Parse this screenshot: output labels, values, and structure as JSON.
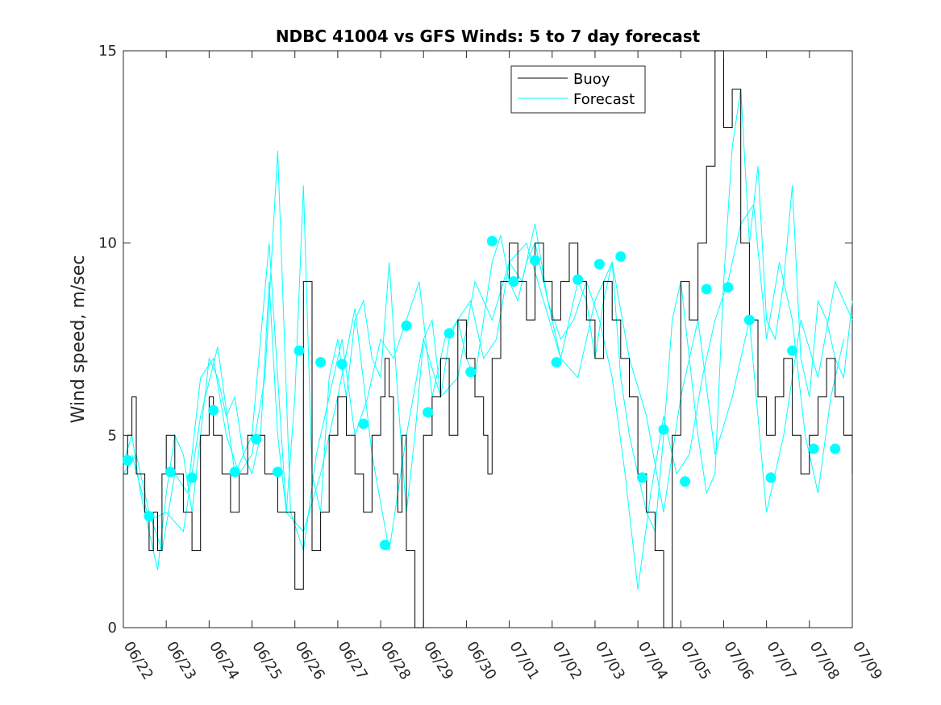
{
  "chart_data": {
    "type": "line",
    "title": "NDBC 41004 vs GFS Winds: 5 to 7 day forecast",
    "xlabel": "",
    "ylabel": "Wind speed, m/sec",
    "xlim": [
      "06/22",
      "07/09"
    ],
    "ylim": [
      0,
      15
    ],
    "yticks": [
      0,
      5,
      10,
      15
    ],
    "xtick_labels": [
      "06/22",
      "06/23",
      "06/24",
      "06/25",
      "06/26",
      "06/27",
      "06/28",
      "06/29",
      "06/30",
      "07/01",
      "07/02",
      "07/03",
      "07/04",
      "07/05",
      "07/06",
      "07/07",
      "07/08",
      "07/09"
    ],
    "grid": false,
    "legend": {
      "placement": "top-center",
      "entries": [
        "Buoy",
        "Forecast"
      ]
    },
    "colors": {
      "buoy": "#000000",
      "forecast": "#00ffff"
    },
    "series": [
      {
        "name": "Buoy",
        "x": [
          0.0,
          0.1,
          0.2,
          0.3,
          0.4,
          0.5,
          0.6,
          0.7,
          0.8,
          0.9,
          1.0,
          1.2,
          1.4,
          1.6,
          1.8,
          2.0,
          2.1,
          2.3,
          2.5,
          2.7,
          2.9,
          3.0,
          3.3,
          3.6,
          4.0,
          4.2,
          4.4,
          4.6,
          4.8,
          5.0,
          5.2,
          5.4,
          5.6,
          5.8,
          6.0,
          6.1,
          6.2,
          6.3,
          6.4,
          6.5,
          6.6,
          6.8,
          7.0,
          7.2,
          7.4,
          7.6,
          7.8,
          8.0,
          8.2,
          8.4,
          8.5,
          8.6,
          8.8,
          9.0,
          9.2,
          9.4,
          9.6,
          9.8,
          10.0,
          10.2,
          10.4,
          10.6,
          10.8,
          11.0,
          11.2,
          11.4,
          11.6,
          11.8,
          12.0,
          12.2,
          12.4,
          12.6,
          12.8,
          13.0,
          13.2,
          13.4,
          13.6,
          13.8,
          14.0,
          14.2,
          14.4,
          14.6,
          14.8,
          15.0,
          15.2,
          15.4,
          15.6,
          15.8,
          16.0,
          16.2,
          16.4,
          16.6,
          16.8,
          17.0
        ],
        "y": [
          4,
          5,
          6,
          4,
          4,
          3,
          2,
          3,
          2,
          4,
          5,
          4,
          3,
          2,
          5,
          6,
          5,
          4,
          3,
          4,
          5,
          5,
          4,
          3,
          1,
          9,
          2,
          3,
          5,
          6,
          5,
          4,
          3,
          5,
          6,
          7,
          6,
          4,
          3,
          5,
          2,
          0,
          5,
          6,
          7,
          5,
          8,
          7,
          6,
          5,
          4,
          7,
          9,
          10,
          9,
          8,
          10,
          9,
          8,
          9,
          10,
          9,
          8,
          7,
          9,
          8,
          7,
          6,
          4,
          3,
          2,
          0,
          5,
          9,
          8,
          10,
          12,
          15,
          13,
          14,
          10,
          8,
          6,
          5,
          6,
          7,
          5,
          4,
          5,
          6,
          7,
          6,
          5,
          4
        ]
      },
      {
        "name": "Forecast",
        "x": [
          0.0,
          0.2,
          0.4,
          0.6,
          0.8,
          1.0,
          1.2,
          1.4,
          1.6,
          1.8,
          2.0,
          2.2,
          2.4,
          2.6,
          2.8,
          3.0,
          3.2,
          3.4,
          3.6,
          3.8,
          4.0,
          4.2,
          4.4,
          4.6,
          4.8,
          5.0,
          5.2,
          5.4,
          5.6,
          5.8,
          6.0,
          6.2,
          6.4,
          6.6,
          6.8,
          7.0,
          7.2,
          7.4,
          7.6,
          7.8,
          8.0,
          8.2,
          8.4,
          8.6,
          8.8,
          9.0,
          9.2,
          9.4,
          9.6,
          9.8,
          10.0,
          10.2,
          10.4,
          10.6,
          10.8,
          11.0,
          11.2,
          11.4,
          11.6,
          11.8,
          12.0,
          12.2,
          12.4,
          12.6,
          12.8,
          13.0,
          13.2,
          13.4,
          13.6,
          13.8,
          14.0,
          14.2,
          14.4,
          14.6,
          14.8,
          15.0,
          15.2,
          15.4,
          15.6,
          15.8,
          16.0,
          16.2,
          16.4,
          16.6,
          16.8,
          17.0
        ],
        "y": [
          4.3,
          5.0,
          3.5,
          2.5,
          1.5,
          3.5,
          5.0,
          4.5,
          3.0,
          5.0,
          7.0,
          6.5,
          5.5,
          6.0,
          4.5,
          4.0,
          5.0,
          9.0,
          5.0,
          3.0,
          6.0,
          11.5,
          4.0,
          3.0,
          6.5,
          7.5,
          6.0,
          8.0,
          8.5,
          7.0,
          6.5,
          9.5,
          6.0,
          3.0,
          5.0,
          7.5,
          8.0,
          6.0,
          7.5,
          8.0,
          7.0,
          6.5,
          8.0,
          9.5,
          10.2,
          9.0,
          8.5,
          9.5,
          10.0,
          9.0,
          8.0,
          7.0,
          8.0,
          9.0,
          8.5,
          7.0,
          8.5,
          9.5,
          6.5,
          5.0,
          4.0,
          3.0,
          2.5,
          5.0,
          8.0,
          9.0,
          7.0,
          5.0,
          3.5,
          4.0,
          9.0,
          12.5,
          14.0,
          10.0,
          12.0,
          8.0,
          7.5,
          9.0,
          11.5,
          7.0,
          6.0,
          8.5,
          8.0,
          7.0,
          6.5,
          8.5
        ]
      },
      {
        "name": "",
        "x": [
          0.0,
          0.3,
          0.6,
          0.9,
          1.2,
          1.5,
          1.8,
          2.1,
          2.4,
          2.7,
          3.0,
          3.3,
          3.6,
          3.9,
          4.2,
          4.5,
          4.8,
          5.1,
          5.4,
          5.7,
          6.0,
          6.3,
          6.6,
          6.9,
          7.2,
          7.5,
          7.8,
          8.1,
          8.4,
          8.7,
          9.0,
          9.3,
          9.6,
          9.9,
          10.2,
          10.5,
          10.8,
          11.1,
          11.4,
          11.7,
          12.0,
          12.3,
          12.6,
          12.9,
          13.2,
          13.5,
          13.8,
          14.1,
          14.4,
          14.7,
          15.0,
          15.3,
          15.6,
          15.9,
          16.2,
          16.5,
          16.8
        ],
        "y": [
          4.0,
          4.5,
          3.0,
          2.0,
          4.0,
          3.5,
          6.5,
          7.0,
          5.0,
          4.0,
          4.5,
          6.5,
          12.4,
          3.0,
          2.0,
          4.5,
          6.0,
          7.5,
          5.0,
          6.0,
          7.5,
          7.0,
          8.0,
          9.0,
          6.0,
          7.5,
          8.0,
          8.5,
          7.0,
          7.5,
          9.5,
          9.0,
          10.5,
          8.5,
          7.5,
          8.0,
          9.0,
          8.0,
          6.5,
          4.0,
          1.0,
          3.5,
          5.5,
          4.0,
          4.5,
          6.5,
          8.0,
          9.0,
          10.5,
          11.0,
          7.5,
          9.5,
          8.0,
          5.0,
          3.5,
          6.0,
          7.5
        ]
      },
      {
        "name": "",
        "x": [
          0.2,
          0.6,
          1.0,
          1.4,
          1.8,
          2.2,
          2.6,
          3.0,
          3.4,
          3.8,
          4.2,
          4.6,
          5.0,
          5.4,
          5.8,
          6.2,
          6.6,
          7.0,
          7.4,
          7.8,
          8.2,
          8.6,
          9.0,
          9.4,
          9.8,
          10.2,
          10.6,
          11.0,
          11.4,
          11.8,
          12.2,
          12.6,
          13.0,
          13.4,
          13.8,
          14.2,
          14.6,
          15.0,
          15.4,
          15.8,
          16.2,
          16.6,
          17.0
        ],
        "y": [
          4.5,
          2.8,
          3.0,
          2.5,
          5.5,
          7.3,
          4.0,
          5.0,
          10.0,
          3.0,
          2.5,
          4.0,
          6.0,
          8.3,
          4.5,
          2.0,
          5.0,
          7.5,
          6.0,
          6.5,
          9.0,
          8.0,
          9.5,
          10.0,
          8.5,
          7.0,
          6.5,
          8.5,
          9.5,
          7.0,
          5.5,
          3.0,
          6.0,
          8.0,
          4.5,
          6.0,
          8.0,
          3.0,
          5.0,
          8.0,
          6.5,
          9.0,
          8.0
        ]
      }
    ],
    "markers": {
      "name": "",
      "x": [
        0.1,
        0.6,
        1.1,
        1.6,
        2.1,
        2.6,
        3.1,
        3.6,
        4.1,
        4.6,
        5.1,
        5.6,
        6.1,
        6.6,
        7.1,
        7.6,
        8.1,
        8.6,
        9.1,
        9.6,
        10.1,
        10.6,
        11.1,
        11.6,
        12.1,
        12.6,
        13.1,
        13.6,
        14.1,
        14.6,
        15.1,
        15.6,
        16.1,
        16.6
      ],
      "y": [
        4.35,
        2.9,
        4.05,
        3.9,
        5.65,
        4.05,
        4.9,
        4.05,
        7.2,
        6.9,
        6.85,
        5.3,
        2.15,
        7.85,
        5.6,
        7.65,
        6.65,
        10.05,
        9.0,
        9.55,
        6.9,
        9.05,
        9.45,
        9.65,
        3.9,
        5.15,
        3.8,
        8.8,
        8.85,
        8.0,
        3.9,
        7.2,
        4.65,
        4.65
      ]
    }
  }
}
